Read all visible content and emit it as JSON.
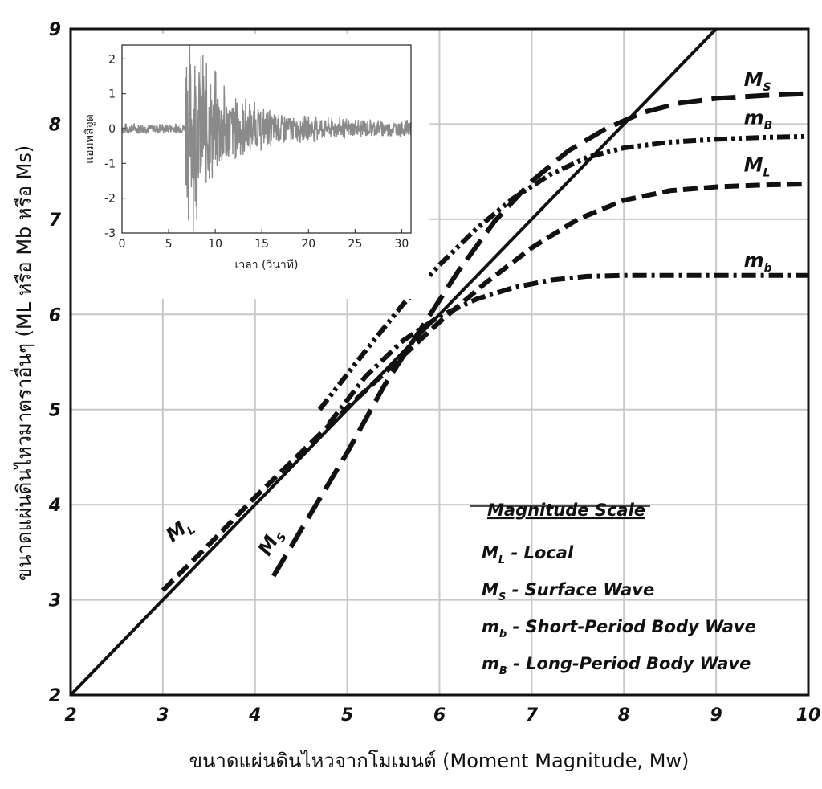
{
  "chart_data": [
    {
      "type": "line",
      "xlabel": "ขนาดแผ่นดินไหวจากโมเมนต์ (Moment Magnitude, Mw)",
      "ylabel": "ขนาดแผ่นดินไหวมาตราอื่นๆ (ML หรือ Mb หรือ Ms)",
      "xlim": [
        2,
        10
      ],
      "ylim": [
        2,
        9
      ],
      "xticks": [
        "2",
        "3",
        "4",
        "5",
        "6",
        "7",
        "8",
        "9",
        "10"
      ],
      "yticks": [
        "2",
        "3",
        "4",
        "5",
        "6",
        "7",
        "8",
        "9"
      ],
      "grid": true,
      "legend_title": "Magnitude Scale",
      "legend": [
        {
          "symbol": "M",
          "sub": "L",
          "desc": " - Local"
        },
        {
          "symbol": "M",
          "sub": "S",
          "desc": " - Surface Wave"
        },
        {
          "symbol": "m",
          "sub": "b",
          "desc": " - Short-Period Body Wave"
        },
        {
          "symbol": "m",
          "sub": "B",
          "desc": " - Long-Period Body Wave"
        }
      ],
      "legend_position": "bottom-right",
      "series": [
        {
          "key": "reference",
          "style": "solid",
          "x": [
            2,
            9
          ],
          "y": [
            2,
            9
          ]
        },
        {
          "key": "ML",
          "style": "dash",
          "label_main": "M",
          "label_sub": "L",
          "x": [
            3.0,
            3.5,
            4.0,
            4.5,
            5.0,
            5.5,
            6.0,
            6.5,
            7.0,
            7.5,
            8.0,
            8.5,
            9.0,
            9.5,
            10.0
          ],
          "y": [
            3.1,
            3.58,
            4.08,
            4.55,
            5.02,
            5.47,
            5.92,
            6.33,
            6.7,
            7.0,
            7.2,
            7.3,
            7.34,
            7.36,
            7.37
          ]
        },
        {
          "key": "MS",
          "style": "longdash",
          "label_main": "M",
          "label_sub": "S",
          "x": [
            4.2,
            4.6,
            5.0,
            5.4,
            5.8,
            6.2,
            6.6,
            7.0,
            7.4,
            7.8,
            8.2,
            8.6,
            9.0,
            9.5,
            10.0
          ],
          "y": [
            3.25,
            3.9,
            4.55,
            5.25,
            5.85,
            6.45,
            6.98,
            7.4,
            7.72,
            7.95,
            8.12,
            8.22,
            8.27,
            8.3,
            8.32
          ]
        },
        {
          "key": "mb",
          "style": "dashdot",
          "label_main": "m",
          "label_sub": "b",
          "x": [
            4.8,
            5.2,
            5.6,
            6.0,
            6.4,
            6.8,
            7.2,
            7.6,
            8.0,
            8.5,
            9.0,
            9.5,
            10.0
          ],
          "y": [
            4.85,
            5.35,
            5.72,
            5.98,
            6.16,
            6.28,
            6.36,
            6.4,
            6.41,
            6.41,
            6.41,
            6.41,
            6.41
          ]
        },
        {
          "key": "mB",
          "style": "dashdotdot",
          "label_main": "m",
          "label_sub": "B",
          "x": [
            4.7,
            5.2,
            5.6,
            6.0,
            6.4,
            6.8,
            7.2,
            7.6,
            8.0,
            8.5,
            9.0,
            9.5,
            10.0
          ],
          "y": [
            5.0,
            5.62,
            6.1,
            6.52,
            6.9,
            7.22,
            7.47,
            7.65,
            7.75,
            7.81,
            7.84,
            7.86,
            7.87
          ]
        }
      ],
      "curve_labels": [
        {
          "main": "M",
          "sub": "L",
          "x": 3.1,
          "y": 3.6,
          "rotate": -36
        },
        {
          "main": "M",
          "sub": "S",
          "x": 4.15,
          "y": 3.45,
          "rotate": -60
        },
        {
          "main": "M",
          "sub": "S",
          "x": 9.3,
          "y": 8.4,
          "rotate": 0
        },
        {
          "main": "m",
          "sub": "B",
          "x": 9.3,
          "y": 8.0,
          "rotate": 0
        },
        {
          "main": "M",
          "sub": "L",
          "x": 9.3,
          "y": 7.5,
          "rotate": 0
        },
        {
          "main": "m",
          "sub": "b",
          "x": 9.3,
          "y": 6.5,
          "rotate": 0
        }
      ]
    },
    {
      "type": "line",
      "inset": true,
      "xlabel": "เวลา (วินาที)",
      "ylabel": "แอมพลิจูด",
      "xlim": [
        0,
        31
      ],
      "ylim": [
        -3,
        2.4
      ],
      "xticks": [
        "0",
        "5",
        "10",
        "15",
        "20",
        "25",
        "30"
      ],
      "yticks": [
        "-3",
        "-2",
        "-1",
        "0",
        "1",
        "2"
      ],
      "grid": false,
      "description_values": {
        "noise_amp": 0.18,
        "onset_s": 6.8,
        "peak_amp": 3.0
      }
    }
  ]
}
